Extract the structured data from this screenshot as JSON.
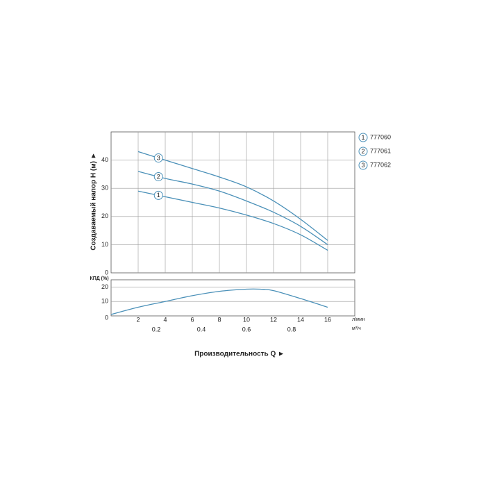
{
  "chart_data": [
    {
      "type": "line",
      "ylabel": "Создаваемый напор H (м) ►",
      "x": [
        2,
        4,
        6,
        8,
        10,
        12,
        14,
        16
      ],
      "xlim": [
        0,
        18
      ],
      "xticks": [
        2,
        4,
        6,
        8,
        10,
        12,
        14,
        16
      ],
      "ylim": [
        0,
        50
      ],
      "yticks": [
        0,
        10,
        20,
        30,
        40
      ],
      "grid": true,
      "legend": "right",
      "series": [
        {
          "name": "777060",
          "marker": "1",
          "color": "#4a90b8",
          "values": [
            29,
            27,
            25,
            23,
            20.5,
            17.5,
            13.5,
            8
          ]
        },
        {
          "name": "777061",
          "marker": "2",
          "color": "#4a90b8",
          "values": [
            36,
            33.5,
            31.5,
            29,
            25.5,
            21.5,
            16.5,
            10
          ]
        },
        {
          "name": "777062",
          "marker": "3",
          "color": "#4a90b8",
          "values": [
            43,
            40,
            37,
            34,
            30.5,
            25.5,
            19,
            11.5
          ]
        }
      ]
    },
    {
      "type": "line",
      "ylabel": "КПД (%)",
      "xlabel": "Производительность Q ►",
      "xunit": "л/мин",
      "x2unit": "м³/ч",
      "x": [
        0,
        2,
        4,
        6,
        8,
        10,
        11,
        12,
        14,
        16
      ],
      "xlim": [
        0,
        18
      ],
      "xticks": [
        2,
        4,
        6,
        8,
        10,
        12,
        14,
        16
      ],
      "x2lim": [
        0,
        1.08
      ],
      "x2ticks": [
        0.2,
        0.4,
        0.6,
        0.8
      ],
      "ylim": [
        0,
        25
      ],
      "yticks": [
        0,
        10,
        20
      ],
      "grid": true,
      "series": [
        {
          "color": "#4a90b8",
          "values": [
            1,
            6,
            10,
            14,
            17,
            18.5,
            18.5,
            17.5,
            12,
            6
          ]
        }
      ]
    }
  ]
}
